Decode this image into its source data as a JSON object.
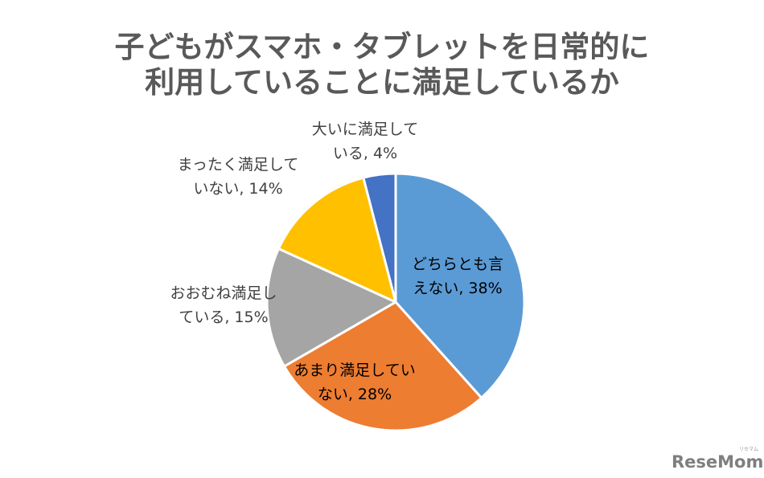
{
  "chart_data": {
    "type": "pie",
    "title_lines": [
      "子どもがスマホ・タブレットを日常的に",
      "利用していることに満足しているか"
    ],
    "slices": [
      {
        "label": "どちらとも言えない",
        "value": 38,
        "display": "38%",
        "color": "#5b9bd5",
        "label_lines": [
          "どちらとも言",
          "えない, 38%"
        ]
      },
      {
        "label": "あまり満足していない",
        "value": 28,
        "display": "28%",
        "color": "#ed7d31",
        "label_lines": [
          "あまり満足してい",
          "ない, 28%"
        ]
      },
      {
        "label": "おおむね満足している",
        "value": 15,
        "display": "15%",
        "color": "#a5a5a5",
        "label_lines": [
          "おおむね満足し",
          "ている, 15%"
        ]
      },
      {
        "label": "まったく満足していない",
        "value": 14,
        "display": "14%",
        "color": "#ffc000",
        "label_lines": [
          "まったく満足して",
          "いない, 14%"
        ]
      },
      {
        "label": "大いに満足している",
        "value": 4,
        "display": "4%",
        "color": "#4472c4",
        "label_lines": [
          "大いに満足して",
          "いる, 4%"
        ]
      }
    ],
    "legend": "none"
  },
  "watermark": {
    "main": "ReseMom",
    "small": "リセマム"
  }
}
